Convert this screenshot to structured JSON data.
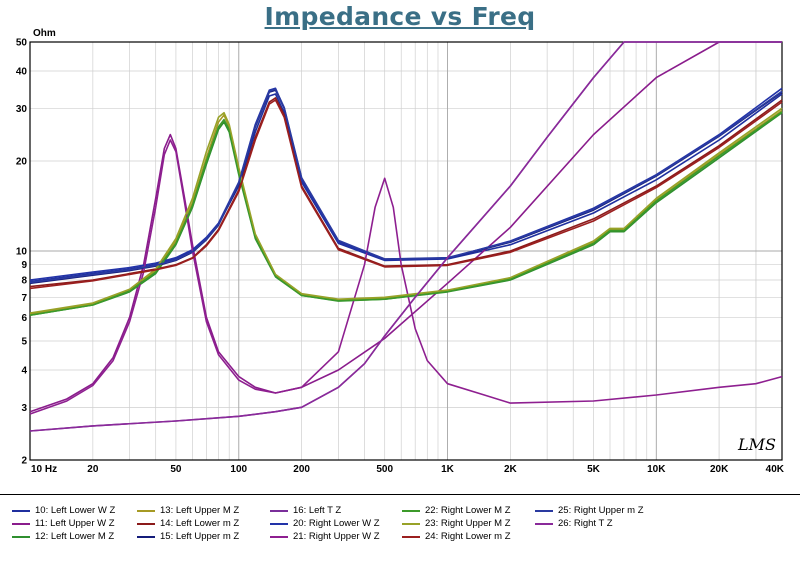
{
  "chart_data": {
    "type": "line",
    "title": "Impedance vs Freq",
    "ylabel": "Ohm",
    "xscale": "log",
    "yscale": "log",
    "xlim": [
      10,
      40000
    ],
    "ylim": [
      2,
      50
    ],
    "x_ticks": [
      {
        "v": 10,
        "label": "10 Hz"
      },
      {
        "v": 20,
        "label": "20"
      },
      {
        "v": 50,
        "label": "50"
      },
      {
        "v": 100,
        "label": "100"
      },
      {
        "v": 200,
        "label": "200"
      },
      {
        "v": 500,
        "label": "500"
      },
      {
        "v": 1000,
        "label": "1K"
      },
      {
        "v": 2000,
        "label": "2K"
      },
      {
        "v": 5000,
        "label": "5K"
      },
      {
        "v": 10000,
        "label": "10K"
      },
      {
        "v": 20000,
        "label": "20K"
      },
      {
        "v": 40000,
        "label": "40K"
      }
    ],
    "y_ticks": [
      {
        "v": 2,
        "label": "2"
      },
      {
        "v": 3,
        "label": "3"
      },
      {
        "v": 4,
        "label": "4"
      },
      {
        "v": 5,
        "label": "5"
      },
      {
        "v": 6,
        "label": "6"
      },
      {
        "v": 7,
        "label": "7"
      },
      {
        "v": 8,
        "label": "8"
      },
      {
        "v": 9,
        "label": "9"
      },
      {
        "v": 10,
        "label": "10"
      },
      {
        "v": 20,
        "label": "20"
      },
      {
        "v": 30,
        "label": "30"
      },
      {
        "v": 40,
        "label": "40"
      },
      {
        "v": 50,
        "label": "50"
      }
    ],
    "watermark": "LMS",
    "series": [
      {
        "name": "10: Left Lower W Z",
        "color": "#1f2f9e",
        "x": [
          10,
          20,
          30,
          40,
          50,
          60,
          70,
          80,
          100,
          120,
          140,
          150,
          165,
          200,
          300,
          500,
          1000,
          2000,
          5000,
          10000,
          20000,
          40000
        ],
        "values": [
          7.9,
          8.4,
          8.7,
          9.0,
          9.4,
          10.0,
          11.0,
          12.3,
          16.5,
          25.0,
          33.0,
          33.5,
          29.0,
          17.0,
          10.6,
          9.3,
          9.4,
          10.5,
          13.4,
          17.3,
          23.5,
          33.5
        ]
      },
      {
        "name": "11: Left Upper W Z",
        "color": "#8a1c8c",
        "x": [
          10,
          15,
          20,
          25,
          30,
          35,
          40,
          44,
          47,
          50,
          55,
          60,
          70,
          80,
          100,
          120,
          150,
          200,
          300,
          500,
          1000,
          2000,
          5000,
          10000,
          20000,
          40000
        ],
        "values": [
          2.9,
          3.2,
          3.6,
          4.4,
          6.0,
          9.0,
          15.0,
          22.0,
          24.5,
          22.0,
          15.0,
          10.5,
          6.0,
          4.6,
          3.8,
          3.5,
          3.35,
          3.5,
          4.0,
          5.1,
          7.8,
          12.0,
          24.5,
          38.0,
          50,
          50
        ]
      },
      {
        "name": "12: Left Lower M Z",
        "color": "#2f8f2f",
        "x": [
          10,
          20,
          30,
          40,
          50,
          60,
          70,
          80,
          85,
          90,
          100,
          120,
          150,
          200,
          300,
          500,
          1000,
          2000,
          5000,
          6000,
          7000,
          10000,
          20000,
          40000
        ],
        "values": [
          6.1,
          6.6,
          7.3,
          8.4,
          10.5,
          14.0,
          19.5,
          25.5,
          27.0,
          25.0,
          18.0,
          11.0,
          8.2,
          7.1,
          6.8,
          6.9,
          7.3,
          8.0,
          10.5,
          11.6,
          11.6,
          14.5,
          20.5,
          29.0
        ]
      },
      {
        "name": "13: Left Upper M Z",
        "color": "#a69a24",
        "x": [
          10,
          20,
          30,
          40,
          50,
          60,
          70,
          80,
          85,
          90,
          100,
          120,
          150,
          200,
          300,
          500,
          1000,
          2000,
          5000,
          6000,
          7000,
          10000,
          20000,
          40000
        ],
        "values": [
          6.15,
          6.65,
          7.4,
          8.6,
          10.8,
          14.5,
          20.5,
          27.0,
          28.5,
          26.0,
          18.5,
          11.2,
          8.3,
          7.15,
          6.85,
          6.95,
          7.35,
          8.1,
          10.7,
          11.8,
          11.8,
          14.8,
          21.0,
          29.5
        ]
      },
      {
        "name": "14: Left Lower m Z",
        "color": "#8b1a1a",
        "x": [
          10,
          20,
          30,
          40,
          50,
          60,
          70,
          80,
          100,
          120,
          140,
          150,
          165,
          200,
          300,
          500,
          1000,
          2000,
          5000,
          10000,
          20000,
          40000
        ],
        "values": [
          7.6,
          8.0,
          8.4,
          8.7,
          9.0,
          9.5,
          10.5,
          11.8,
          16.0,
          24.0,
          31.5,
          32.5,
          28.5,
          16.5,
          10.2,
          8.9,
          9.0,
          10.0,
          12.8,
          16.5,
          22.5,
          32.0
        ]
      },
      {
        "name": "15: Left Upper m Z",
        "color": "#141c7a",
        "x": [
          10,
          20,
          30,
          40,
          50,
          60,
          70,
          80,
          100,
          120,
          140,
          150,
          165,
          200,
          300,
          500,
          1000,
          2000,
          5000,
          10000,
          20000,
          40000
        ],
        "values": [
          7.8,
          8.3,
          8.6,
          8.9,
          9.3,
          9.9,
          10.9,
          12.2,
          16.8,
          26.0,
          34.0,
          34.5,
          30.0,
          17.5,
          10.8,
          9.4,
          9.45,
          10.7,
          13.7,
          17.8,
          24.2,
          34.0
        ]
      },
      {
        "name": "16: Left T Z",
        "color": "#7a2f9a",
        "x": [
          10,
          20,
          50,
          100,
          150,
          200,
          300,
          400,
          500,
          700,
          1000,
          2000,
          3000,
          5000,
          7000,
          10000,
          15000,
          20000,
          30000,
          40000
        ],
        "values": [
          2.5,
          2.6,
          2.7,
          2.8,
          2.9,
          3.0,
          3.5,
          4.2,
          5.2,
          7.0,
          9.5,
          16.5,
          24.0,
          38.0,
          50,
          50,
          50,
          50,
          50,
          50
        ]
      },
      {
        "name": "20: Right Lower W Z",
        "color": "#2233a8",
        "x": [
          10,
          20,
          30,
          40,
          50,
          60,
          70,
          80,
          100,
          120,
          140,
          150,
          165,
          200,
          300,
          500,
          1000,
          2000,
          5000,
          10000,
          20000,
          40000
        ],
        "values": [
          8.0,
          8.5,
          8.8,
          9.1,
          9.5,
          10.1,
          11.1,
          12.4,
          17.0,
          26.5,
          34.5,
          35.0,
          30.0,
          17.3,
          10.7,
          9.35,
          9.45,
          10.8,
          13.9,
          18.0,
          24.5,
          35.0
        ]
      },
      {
        "name": "21: Right Upper W Z",
        "color": "#8e1f90",
        "x": [
          10,
          15,
          20,
          25,
          30,
          35,
          40,
          44,
          47,
          50,
          55,
          60,
          70,
          80,
          100,
          120,
          150,
          200,
          300,
          400,
          450,
          500,
          550,
          600,
          700,
          800,
          1000,
          1500,
          2000,
          5000,
          10000,
          20000,
          30000,
          40000
        ],
        "values": [
          2.85,
          3.15,
          3.55,
          4.3,
          5.8,
          8.5,
          14.0,
          21.0,
          23.5,
          21.5,
          14.5,
          10.0,
          5.8,
          4.5,
          3.7,
          3.45,
          3.35,
          3.5,
          4.6,
          9.0,
          14.0,
          17.5,
          14.0,
          9.0,
          5.5,
          4.3,
          3.6,
          3.3,
          3.1,
          3.15,
          3.3,
          3.5,
          3.6,
          3.8
        ]
      },
      {
        "name": "22: Right Lower M Z",
        "color": "#3c9a2a",
        "x": [
          10,
          20,
          30,
          40,
          50,
          60,
          70,
          80,
          85,
          90,
          100,
          120,
          150,
          200,
          300,
          500,
          1000,
          2000,
          5000,
          6000,
          7000,
          10000,
          20000,
          40000
        ],
        "values": [
          6.1,
          6.6,
          7.35,
          8.5,
          10.6,
          14.2,
          20.0,
          26.0,
          27.5,
          25.5,
          18.2,
          11.1,
          8.25,
          7.1,
          6.82,
          6.9,
          7.32,
          8.05,
          10.6,
          11.7,
          11.7,
          14.7,
          20.8,
          29.2
        ]
      },
      {
        "name": "23: Right Upper M Z",
        "color": "#98a228",
        "x": [
          10,
          20,
          30,
          40,
          50,
          60,
          70,
          80,
          85,
          90,
          100,
          120,
          150,
          200,
          300,
          500,
          1000,
          2000,
          5000,
          6000,
          7000,
          10000,
          20000,
          40000
        ],
        "values": [
          6.2,
          6.7,
          7.45,
          8.7,
          11.0,
          15.0,
          21.5,
          28.0,
          29.0,
          26.5,
          19.0,
          11.4,
          8.35,
          7.2,
          6.9,
          7.0,
          7.4,
          8.15,
          10.8,
          11.9,
          11.9,
          15.0,
          21.3,
          30.0
        ]
      },
      {
        "name": "24: Right Lower m Z",
        "color": "#9b1f1f",
        "x": [
          10,
          20,
          30,
          40,
          50,
          60,
          70,
          80,
          100,
          120,
          140,
          150,
          165,
          200,
          300,
          500,
          1000,
          2000,
          5000,
          10000,
          20000,
          40000
        ],
        "values": [
          7.5,
          7.95,
          8.35,
          8.65,
          8.95,
          9.45,
          10.4,
          11.7,
          15.8,
          23.5,
          31.0,
          32.0,
          28.0,
          16.3,
          10.1,
          8.85,
          8.95,
          9.9,
          12.6,
          16.3,
          22.2,
          31.5
        ]
      },
      {
        "name": "25: Right Upper m Z",
        "color": "#2a3aa0",
        "x": [
          10,
          20,
          30,
          40,
          50,
          60,
          70,
          80,
          100,
          120,
          140,
          150,
          165,
          200,
          300,
          500,
          1000,
          2000,
          5000,
          10000,
          20000,
          40000
        ],
        "values": [
          7.85,
          8.35,
          8.65,
          8.95,
          9.35,
          9.95,
          10.95,
          12.25,
          16.9,
          26.2,
          34.2,
          34.8,
          30.2,
          17.6,
          10.85,
          9.4,
          9.5,
          10.75,
          13.8,
          17.9,
          24.3,
          34.2
        ]
      },
      {
        "name": "26: Right T Z",
        "color": "#8a2a9a",
        "x": [
          10,
          20,
          50,
          100,
          150,
          200,
          300,
          400,
          500,
          700,
          1000,
          2000,
          3000,
          5000,
          7000,
          10000,
          15000,
          20000,
          30000,
          40000
        ],
        "values": [
          2.5,
          2.6,
          2.7,
          2.8,
          2.9,
          3.0,
          3.5,
          4.2,
          5.2,
          7.0,
          9.5,
          16.5,
          24.0,
          38.0,
          50,
          50,
          50,
          50,
          50,
          50
        ]
      }
    ]
  }
}
